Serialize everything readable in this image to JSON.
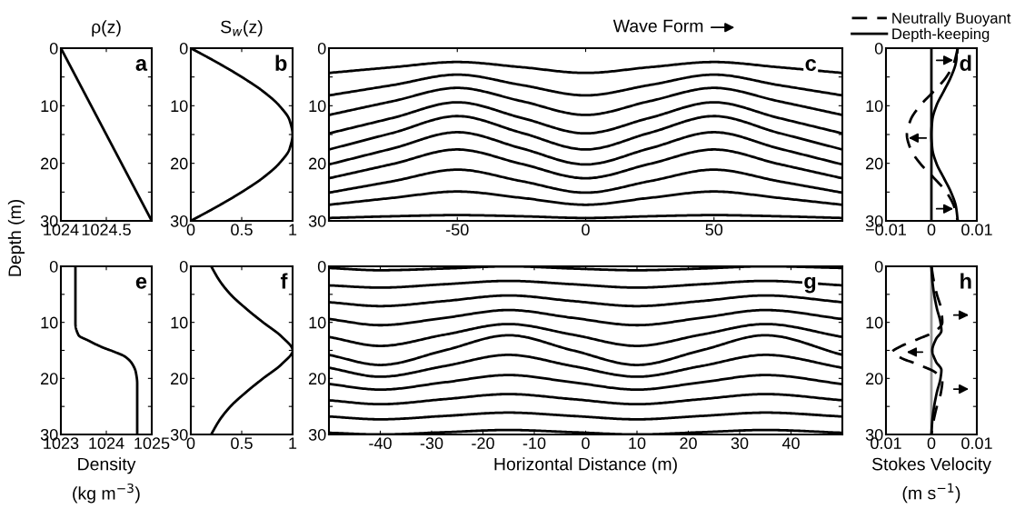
{
  "chart_data": [
    {
      "type": "line",
      "orientation": "horizontal",
      "title": "ρ(z)",
      "ylabel": "Depth (m)",
      "xlim": [
        1024,
        1025
      ],
      "xticks": [
        1024,
        1024.5
      ],
      "ylim": [
        30,
        0
      ],
      "yticks": [
        0,
        {
          "value": 5,
          "label": null
        },
        10,
        {
          "value": 15,
          "label": null
        },
        20,
        {
          "value": 25,
          "label": null
        },
        30
      ],
      "annotations": [
        "a"
      ],
      "series": [
        {
          "color": "#000000",
          "x": [
            0,
            30
          ],
          "values": [
            1024,
            1025
          ]
        }
      ]
    },
    {
      "type": "line",
      "orientation": "horizontal",
      "title": "S$_{w}$(z)",
      "xlim": [
        0,
        1
      ],
      "xticks": [
        0,
        0.5,
        1
      ],
      "ylim": [
        30,
        0
      ],
      "yticks": [
        0,
        {
          "value": 5,
          "label": null
        },
        10,
        {
          "value": 15,
          "label": null
        },
        20,
        {
          "value": 25,
          "label": null
        },
        30
      ],
      "annotations": [
        "b"
      ],
      "series": [
        {
          "color": "#000000",
          "x": [
            0,
            2.5,
            5,
            7.5,
            10,
            12.5,
            15,
            17.5,
            20,
            22.5,
            25,
            27.5,
            30
          ],
          "values": [
            0,
            0.26,
            0.5,
            0.71,
            0.87,
            0.97,
            1,
            0.97,
            0.87,
            0.71,
            0.5,
            0.26,
            0
          ]
        }
      ]
    },
    {
      "type": "line",
      "x": [
        -100,
        -75,
        -50,
        -25,
        0,
        25,
        50,
        75,
        100
      ],
      "xlim": [
        -100,
        100
      ],
      "xticks": [
        -50,
        0,
        50
      ],
      "ylim": [
        30,
        0
      ],
      "yticks": [
        0,
        {
          "value": 5,
          "label": null
        },
        10,
        {
          "value": 15,
          "label": null
        },
        20,
        {
          "value": 25,
          "label": null
        },
        30
      ],
      "annotations": [
        "c",
        "Wave Form"
      ],
      "series": [
        {
          "color": "#000000",
          "values": [
            4.3,
            3.3,
            2.4,
            3.3,
            4.3,
            3.3,
            2.4,
            3.3,
            4.3
          ]
        },
        {
          "color": "#000000",
          "values": [
            8.2,
            6.4,
            4.6,
            6.4,
            8.2,
            6.4,
            4.6,
            6.4,
            8.2
          ]
        },
        {
          "color": "#000000",
          "values": [
            11.6,
            9.2,
            6.9,
            9.2,
            11.6,
            9.2,
            6.9,
            9.2,
            11.6
          ]
        },
        {
          "color": "#000000",
          "values": [
            14.8,
            12.1,
            9.4,
            12.1,
            14.8,
            12.1,
            9.4,
            12.1,
            14.8
          ]
        },
        {
          "color": "#000000",
          "values": [
            17.6,
            14.7,
            11.8,
            14.7,
            17.6,
            14.7,
            11.8,
            14.7,
            17.6
          ]
        },
        {
          "color": "#000000",
          "values": [
            20.2,
            17.4,
            14.6,
            17.4,
            20.2,
            17.4,
            14.6,
            17.4,
            20.2
          ]
        },
        {
          "color": "#000000",
          "values": [
            22.6,
            20.1,
            17.6,
            20.1,
            22.6,
            20.1,
            17.6,
            20.1,
            22.6
          ]
        },
        {
          "color": "#000000",
          "values": [
            25.1,
            23.1,
            21.1,
            23.1,
            25.1,
            23.1,
            21.1,
            23.1,
            25.1
          ]
        },
        {
          "color": "#000000",
          "values": [
            27.2,
            26.0,
            24.9,
            26.0,
            27.2,
            26.0,
            24.9,
            26.0,
            27.2
          ]
        },
        {
          "color": "#000000",
          "values": [
            29.5,
            29.2,
            29.0,
            29.2,
            29.5,
            29.2,
            29.0,
            29.2,
            29.5
          ]
        }
      ]
    },
    {
      "type": "line",
      "orientation": "horizontal",
      "xlim": [
        -0.01,
        0.01
      ],
      "xticks": [
        {
          "value": -0.01,
          "label": "−0.01"
        },
        0,
        0.01
      ],
      "ylim": [
        30,
        0
      ],
      "yticks": [
        0,
        {
          "value": 5,
          "label": null
        },
        10,
        {
          "value": 15,
          "label": null
        },
        20,
        {
          "value": 25,
          "label": null
        },
        30
      ],
      "annotations": [
        "d"
      ],
      "legend": "top",
      "ref_lines": [
        {
          "axis": "x",
          "value": 0,
          "color": "#000000"
        }
      ],
      "series": [
        {
          "name": "Neutrally Buoyant",
          "color": "#000000",
          "line_style": "dashed",
          "x": [
            0,
            2.5,
            5,
            7.5,
            10,
            12.5,
            15,
            17.5,
            20,
            22.5,
            25,
            27.5,
            30
          ],
          "values": [
            0.0058,
            0.005,
            0.0033,
            0.0005,
            -0.0025,
            -0.0046,
            -0.0054,
            -0.0046,
            -0.0025,
            0.0005,
            0.0033,
            0.005,
            0.0058
          ]
        },
        {
          "name": "Depth-keeping",
          "color": "#000000",
          "line_style": "solid",
          "x": [
            0,
            2.5,
            5,
            7.5,
            10,
            12.5,
            15,
            17.5,
            20,
            22.5,
            25,
            27.5,
            30
          ],
          "values": [
            0.0058,
            0.0054,
            0.0043,
            0.0027,
            0.0011,
            0.0002,
            0,
            0.0002,
            0.0011,
            0.0027,
            0.0043,
            0.0054,
            0.0058
          ]
        }
      ]
    },
    {
      "type": "line",
      "orientation": "horizontal",
      "xlabel": "Density\n(kg m$^{−3}$)",
      "xlim": [
        1023,
        1025
      ],
      "xticks": [
        1023,
        1024,
        1025
      ],
      "ylim": [
        30,
        0
      ],
      "yticks": [
        0,
        {
          "value": 5,
          "label": null
        },
        10,
        {
          "value": 15,
          "label": null
        },
        20,
        {
          "value": 25,
          "label": null
        },
        30
      ],
      "annotations": [
        "e"
      ],
      "series": [
        {
          "color": "#000000",
          "x": [
            0,
            10.2,
            12.3,
            13.3,
            14.3,
            15.3,
            16.1,
            17.4,
            18.9,
            20.9,
            30
          ],
          "values": [
            1023.32,
            1023.32,
            1023.39,
            1023.62,
            1023.87,
            1024.19,
            1024.41,
            1024.57,
            1024.65,
            1024.68,
            1024.68
          ]
        }
      ]
    },
    {
      "type": "line",
      "orientation": "horizontal",
      "xlim": [
        0,
        1
      ],
      "xticks": [
        0,
        0.5,
        1
      ],
      "ylim": [
        30,
        0
      ],
      "yticks": [
        0,
        {
          "value": 5,
          "label": null
        },
        10,
        {
          "value": 15,
          "label": null
        },
        20,
        {
          "value": 25,
          "label": null
        },
        30
      ],
      "annotations": [
        "f"
      ],
      "series": [
        {
          "color": "#000000",
          "x": [
            0,
            2.5,
            5,
            7.5,
            10,
            12.5,
            15,
            17.5,
            20,
            22.5,
            25,
            27.5,
            30
          ],
          "values": [
            0.2,
            0.28,
            0.39,
            0.54,
            0.71,
            0.89,
            1,
            0.89,
            0.71,
            0.54,
            0.39,
            0.28,
            0.2
          ]
        }
      ]
    },
    {
      "type": "line",
      "xlabel": "Horizontal Distance (m)",
      "x": [
        -50,
        -40,
        -27.5,
        -15,
        -2.5,
        10,
        22.5,
        35,
        50
      ],
      "xlim": [
        -50,
        50
      ],
      "xticks": [
        -40,
        -30,
        -20,
        -10,
        0,
        10,
        20,
        30,
        40
      ],
      "ylim": [
        30,
        0
      ],
      "yticks": [
        0,
        {
          "value": 5,
          "label": null
        },
        10,
        {
          "value": 15,
          "label": null
        },
        20,
        {
          "value": 25,
          "label": null
        },
        30
      ],
      "annotations": [
        "g"
      ],
      "series": [
        {
          "color": "#000000",
          "values": [
            0.3,
            0.7,
            0.4,
            0.0,
            0.4,
            0.7,
            0.4,
            0.0,
            0.3
          ]
        },
        {
          "color": "#000000",
          "values": [
            3.4,
            3.8,
            3.2,
            2.6,
            3.2,
            3.8,
            3.2,
            2.6,
            3.4
          ]
        },
        {
          "color": "#000000",
          "values": [
            6.4,
            7.1,
            6.2,
            5.2,
            6.2,
            7.1,
            6.2,
            5.2,
            6.4
          ]
        },
        {
          "color": "#000000",
          "values": [
            9.4,
            10.5,
            9.2,
            7.8,
            9.2,
            10.5,
            9.2,
            7.8,
            9.4
          ]
        },
        {
          "color": "#000000",
          "values": [
            12.6,
            14.2,
            12.2,
            10.3,
            12.2,
            14.2,
            12.2,
            10.3,
            12.6
          ]
        },
        {
          "color": "#000000",
          "values": [
            15.8,
            17.6,
            15.0,
            12.3,
            15.0,
            17.6,
            15.0,
            12.3,
            15.8
          ]
        },
        {
          "color": "#000000",
          "values": [
            18.1,
            19.7,
            17.8,
            15.8,
            17.8,
            19.7,
            17.8,
            15.8,
            18.1
          ]
        },
        {
          "color": "#000000",
          "values": [
            21.0,
            22.0,
            20.7,
            19.4,
            20.7,
            22.0,
            20.7,
            19.4,
            21.0
          ]
        },
        {
          "color": "#000000",
          "values": [
            23.9,
            24.6,
            23.7,
            22.8,
            23.7,
            24.6,
            23.7,
            22.8,
            23.9
          ]
        },
        {
          "color": "#000000",
          "values": [
            26.8,
            27.3,
            26.7,
            26.1,
            26.7,
            27.3,
            26.7,
            26.1,
            26.8
          ]
        },
        {
          "color": "#000000",
          "values": [
            29.7,
            30.0,
            29.6,
            29.2,
            29.6,
            30.0,
            29.6,
            29.2,
            29.7
          ]
        }
      ]
    },
    {
      "type": "line",
      "orientation": "horizontal",
      "xlabel": "Stokes Velocity\n(m s$^{−1}$)",
      "xlim": [
        -0.01,
        0.01
      ],
      "xticks": [
        {
          "value": -0.01,
          "label": "0.01"
        },
        0,
        0.01
      ],
      "ylim": [
        30,
        0
      ],
      "yticks": [
        0,
        {
          "value": 5,
          "label": null
        },
        10,
        {
          "value": 15,
          "label": null
        },
        20,
        {
          "value": 25,
          "label": null
        },
        30
      ],
      "annotations": [
        "h"
      ],
      "ref_lines": [
        {
          "axis": "x",
          "value": 0,
          "color": "#999999"
        }
      ],
      "series": [
        {
          "color": "#000000",
          "line_style": "dashed",
          "x": [
            0,
            2.5,
            5,
            7.5,
            10,
            11.5,
            13,
            14.3,
            15.3,
            16.3,
            17.5,
            19,
            20.5,
            22.5,
            25,
            27.5,
            30
          ],
          "values": [
            0,
            0.0005,
            0.0012,
            0.0021,
            0.0024,
            0.001,
            -0.003,
            -0.0068,
            -0.0086,
            -0.0068,
            -0.003,
            0.001,
            0.0024,
            0.0021,
            0.0012,
            0.0005,
            0
          ]
        },
        {
          "color": "#000000",
          "line_style": "solid",
          "x": [
            0,
            2.5,
            5,
            7.5,
            10,
            11.5,
            13,
            15,
            17,
            18.5,
            20,
            22.5,
            25,
            27.5,
            30
          ],
          "values": [
            0,
            0.0002,
            0.0006,
            0.0012,
            0.002,
            0.0022,
            0.001,
            0.0002,
            0.001,
            0.0022,
            0.002,
            0.0012,
            0.0006,
            0.0002,
            0
          ]
        }
      ]
    }
  ]
}
